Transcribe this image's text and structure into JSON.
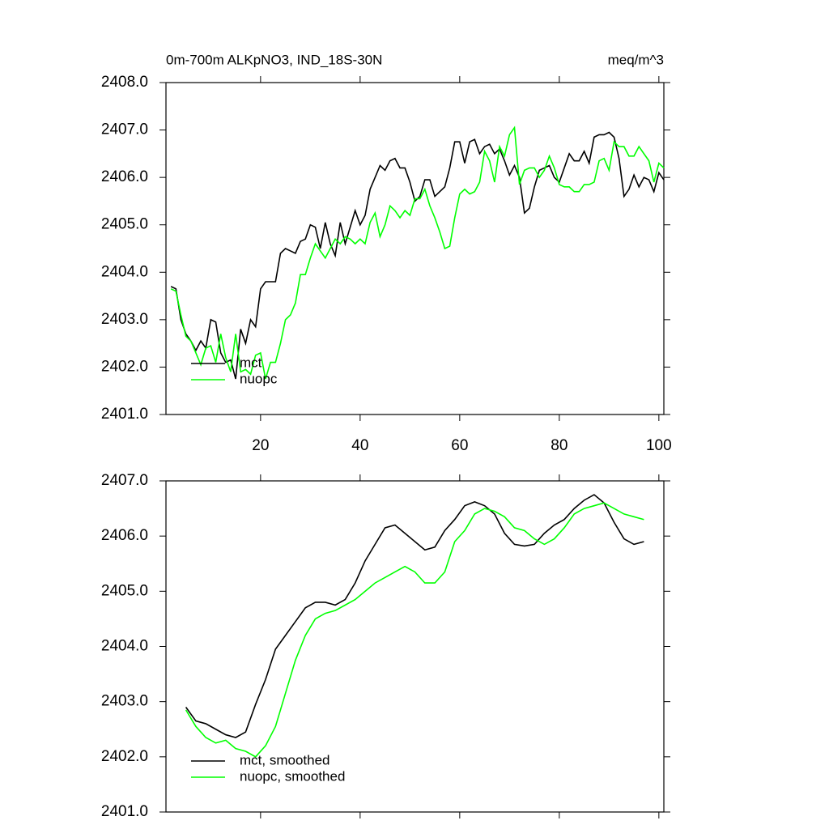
{
  "chart_data": [
    {
      "type": "line",
      "title": "0m-700m ALKpNO3, IND_18S-30N",
      "subtitle": "meq/m^3",
      "x": [
        2,
        3,
        4,
        5,
        6,
        7,
        8,
        9,
        10,
        11,
        12,
        13,
        14,
        15,
        16,
        17,
        18,
        19,
        20,
        21,
        22,
        23,
        24,
        25,
        26,
        27,
        28,
        29,
        30,
        31,
        32,
        33,
        34,
        35,
        36,
        37,
        38,
        39,
        40,
        41,
        42,
        43,
        44,
        45,
        46,
        47,
        48,
        49,
        50,
        51,
        52,
        53,
        54,
        55,
        56,
        57,
        58,
        59,
        60,
        61,
        62,
        63,
        64,
        65,
        66,
        67,
        68,
        69,
        70,
        71,
        72,
        73,
        74,
        75,
        76,
        77,
        78,
        79,
        80,
        81,
        82,
        83,
        84,
        85,
        86,
        87,
        88,
        89,
        90,
        91,
        92,
        93,
        94,
        95,
        96,
        97,
        98,
        99,
        100,
        101
      ],
      "series": [
        {
          "name": "mct",
          "color": "#000000",
          "values": [
            2403.7,
            2403.65,
            2403.0,
            2402.7,
            2402.55,
            2402.35,
            2402.55,
            2402.4,
            2403.0,
            2402.95,
            2402.3,
            2402.1,
            2402.15,
            2401.75,
            2402.8,
            2402.5,
            2403.0,
            2402.85,
            2403.65,
            2403.8,
            2403.8,
            2403.8,
            2404.4,
            2404.5,
            2404.45,
            2404.4,
            2404.65,
            2404.7,
            2405.0,
            2404.95,
            2404.5,
            2405.05,
            2404.6,
            2404.35,
            2405.05,
            2404.6,
            2404.95,
            2405.3,
            2405.0,
            2405.2,
            2405.75,
            2406.0,
            2406.25,
            2406.15,
            2406.35,
            2406.4,
            2406.2,
            2406.2,
            2405.9,
            2405.5,
            2405.6,
            2405.95,
            2405.95,
            2405.6,
            2405.7,
            2405.8,
            2406.2,
            2406.75,
            2406.75,
            2406.3,
            2406.75,
            2406.8,
            2406.5,
            2406.65,
            2406.7,
            2406.5,
            2406.6,
            2406.35,
            2406.05,
            2406.25,
            2406.0,
            2405.25,
            2405.35,
            2405.8,
            2406.15,
            2406.2,
            2406.25,
            2406.0,
            2405.9,
            2406.2,
            2406.5,
            2406.35,
            2406.35,
            2406.55,
            2406.3,
            2406.85,
            2406.9,
            2406.9,
            2406.95,
            2406.85,
            2406.4,
            2405.6,
            2405.75,
            2406.05,
            2405.8,
            2406.0,
            2405.95,
            2405.7,
            2406.1,
            2405.95
          ]
        },
        {
          "name": "nuopc",
          "color": "#00ff00",
          "values": [
            2403.65,
            2403.6,
            2403.1,
            2402.65,
            2402.55,
            2402.3,
            2402.05,
            2402.4,
            2402.45,
            2402.1,
            2402.7,
            2402.2,
            2401.9,
            2402.7,
            2401.9,
            2401.95,
            2401.85,
            2402.25,
            2402.3,
            2401.75,
            2402.1,
            2402.1,
            2402.5,
            2403.0,
            2403.1,
            2403.35,
            2403.95,
            2403.95,
            2404.3,
            2404.6,
            2404.45,
            2404.3,
            2404.5,
            2404.7,
            2404.6,
            2404.75,
            2404.7,
            2404.6,
            2404.7,
            2404.6,
            2405.05,
            2405.25,
            2404.75,
            2405.0,
            2405.4,
            2405.3,
            2405.15,
            2405.3,
            2405.2,
            2405.55,
            2405.55,
            2405.75,
            2405.4,
            2405.15,
            2404.85,
            2404.5,
            2404.55,
            2405.15,
            2405.65,
            2405.75,
            2405.65,
            2405.7,
            2405.9,
            2406.55,
            2406.35,
            2405.9,
            2406.65,
            2406.45,
            2406.9,
            2407.05,
            2405.85,
            2406.15,
            2406.2,
            2406.2,
            2406.0,
            2406.15,
            2406.45,
            2406.2,
            2405.85,
            2405.8,
            2405.8,
            2405.7,
            2405.7,
            2405.85,
            2405.85,
            2405.9,
            2406.35,
            2406.4,
            2406.15,
            2406.75,
            2406.65,
            2406.65,
            2406.45,
            2406.45,
            2406.65,
            2406.5,
            2406.35,
            2405.9,
            2406.3,
            2406.2
          ]
        }
      ],
      "xlim": [
        1,
        101
      ],
      "xticks": [
        20,
        40,
        60,
        80,
        100
      ],
      "xticklabels": true,
      "ylim": [
        2401,
        2408
      ],
      "yticks": [
        {
          "value": 2401,
          "label": "2401.0"
        },
        {
          "value": 2402,
          "label": "2402.0"
        },
        {
          "value": 2403,
          "label": "2403.0"
        },
        {
          "value": 2404,
          "label": "2404.0"
        },
        {
          "value": 2405,
          "label": "2405.0"
        },
        {
          "value": 2406,
          "label": "2406.0"
        },
        {
          "value": 2407,
          "label": "2407.0"
        },
        {
          "value": 2408,
          "label": "2408.0"
        }
      ],
      "legend": "lower left"
    },
    {
      "type": "line",
      "x": [
        5,
        7,
        9,
        11,
        13,
        15,
        17,
        19,
        21,
        23,
        25,
        27,
        29,
        31,
        33,
        35,
        37,
        39,
        41,
        43,
        45,
        47,
        49,
        51,
        53,
        55,
        57,
        59,
        61,
        63,
        65,
        67,
        69,
        71,
        73,
        75,
        77,
        79,
        81,
        83,
        85,
        87,
        89,
        91,
        93,
        95,
        97
      ],
      "series": [
        {
          "name": "mct, smoothed",
          "color": "#000000",
          "values": [
            2402.9,
            2402.65,
            2402.6,
            2402.5,
            2402.4,
            2402.35,
            2402.45,
            2402.95,
            2403.4,
            2403.95,
            2404.2,
            2404.45,
            2404.7,
            2404.8,
            2404.8,
            2404.75,
            2404.85,
            2405.15,
            2405.55,
            2405.85,
            2406.15,
            2406.2,
            2406.05,
            2405.9,
            2405.75,
            2405.8,
            2406.1,
            2406.3,
            2406.55,
            2406.62,
            2406.55,
            2406.4,
            2406.05,
            2405.85,
            2405.82,
            2405.85,
            2406.05,
            2406.2,
            2406.3,
            2406.5,
            2406.65,
            2406.75,
            2406.6,
            2406.25,
            2405.95,
            2405.85,
            2405.9
          ]
        },
        {
          "name": "nuopc, smoothed",
          "color": "#00ff00",
          "values": [
            2402.85,
            2402.55,
            2402.35,
            2402.25,
            2402.3,
            2402.15,
            2402.1,
            2402.0,
            2402.2,
            2402.55,
            2403.15,
            2403.75,
            2404.2,
            2404.5,
            2404.6,
            2404.65,
            2404.75,
            2404.85,
            2405.0,
            2405.15,
            2405.25,
            2405.35,
            2405.45,
            2405.35,
            2405.15,
            2405.15,
            2405.35,
            2405.9,
            2406.1,
            2406.4,
            2406.5,
            2406.45,
            2406.35,
            2406.15,
            2406.1,
            2405.95,
            2405.85,
            2405.95,
            2406.15,
            2406.4,
            2406.5,
            2406.55,
            2406.6,
            2406.5,
            2406.4,
            2406.35,
            2406.3
          ]
        }
      ],
      "xlim": [
        1,
        101
      ],
      "xticks": [
        20,
        40,
        60,
        80,
        100
      ],
      "xticklabels": false,
      "ylim": [
        2401,
        2407
      ],
      "yticks": [
        {
          "value": 2401,
          "label": "2401.0"
        },
        {
          "value": 2402,
          "label": "2402.0"
        },
        {
          "value": 2403,
          "label": "2403.0"
        },
        {
          "value": 2404,
          "label": "2404.0"
        },
        {
          "value": 2405,
          "label": "2405.0"
        },
        {
          "value": 2406,
          "label": "2406.0"
        },
        {
          "value": 2407,
          "label": "2407.0"
        }
      ],
      "legend": "lower left"
    }
  ]
}
